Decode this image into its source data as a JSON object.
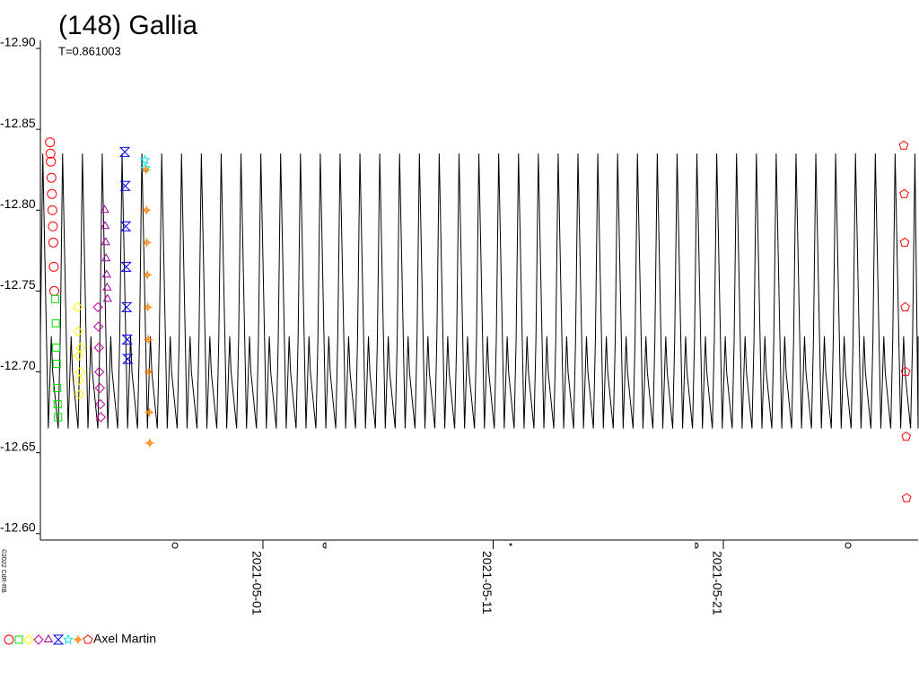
{
  "chart_data": {
    "type": "lightcurve",
    "title": "(148) Gallia",
    "subtitle": "T=0.861003",
    "period": 0.861003,
    "credit": "©2022 CdR-RB",
    "observer": "Axel Martin",
    "y_inverted": true,
    "ylim": [
      -12.905,
      -12.596
    ],
    "yticks": [
      {
        "value": -12.9,
        "label": "-12.90"
      },
      {
        "value": -12.85,
        "label": "-12.85"
      },
      {
        "value": -12.8,
        "label": "-12.80"
      },
      {
        "value": -12.75,
        "label": "-12.75"
      },
      {
        "value": -12.7,
        "label": "-12.70"
      },
      {
        "value": -12.65,
        "label": "-12.65"
      },
      {
        "value": -12.6,
        "label": "-12.60"
      }
    ],
    "xlim": [
      "2021-04-21T08:00",
      "2021-05-29T11:00"
    ],
    "xticks": [
      "2021-05-01",
      "2021-05-11",
      "2021-05-21"
    ],
    "model": {
      "color": "#000000",
      "phase": [
        0,
        0.12,
        0.4,
        0.55,
        0.62,
        0.9,
        1
      ],
      "values": [
        -12.72,
        -12.835,
        -12.665,
        -12.722,
        -12.7,
        -12.665,
        -12.72
      ]
    },
    "series": [
      {
        "marker": "circle",
        "color": "#ff0000",
        "x": [
          "2021-04-21T18:00",
          "2021-04-21T18:30",
          "2021-04-21T19:00",
          "2021-04-21T19:30",
          "2021-04-21T20:00",
          "2021-04-21T20:30",
          "2021-04-21T21:00",
          "2021-04-21T21:30",
          "2021-04-21T22:00",
          "2021-04-21T22:30"
        ],
        "values": [
          -12.842,
          -12.835,
          -12.83,
          -12.82,
          -12.81,
          -12.8,
          -12.79,
          -12.78,
          -12.765,
          -12.75
        ]
      },
      {
        "marker": "square",
        "color": "#00e000",
        "x": [
          "2021-04-21T23:30",
          "2021-04-22T00:00",
          "2021-04-22T00:30",
          "2021-04-22T01:00",
          "2021-04-22T01:30",
          "2021-04-22T02:00",
          "2021-04-22T02:30"
        ],
        "values": [
          -12.745,
          -12.73,
          -12.715,
          -12.705,
          -12.69,
          -12.68,
          -12.672
        ]
      },
      {
        "marker": "diamond",
        "color": "#ffff00",
        "x": [
          "2021-04-22T23:00",
          "2021-04-22T23:30",
          "2021-04-23T00:00",
          "2021-04-23T00:30",
          "2021-04-23T01:00",
          "2021-04-23T01:30",
          "2021-04-23T02:00"
        ],
        "values": [
          -12.74,
          -12.725,
          -12.71,
          -12.695,
          -12.686,
          -12.7,
          -12.715
        ]
      },
      {
        "marker": "diamond",
        "color": "#c000a0",
        "x": [
          "2021-04-23T20:00",
          "2021-04-23T20:30",
          "2021-04-23T21:00",
          "2021-04-23T21:30",
          "2021-04-23T22:00",
          "2021-04-23T22:30",
          "2021-04-23T23:00"
        ],
        "values": [
          -12.74,
          -12.728,
          -12.715,
          -12.7,
          -12.69,
          -12.68,
          -12.672
        ]
      },
      {
        "marker": "triangle",
        "color": "#a000a0",
        "x": [
          "2021-04-24T03:00",
          "2021-04-24T03:30",
          "2021-04-24T04:00",
          "2021-04-24T04:30",
          "2021-04-24T05:00",
          "2021-04-24T05:30",
          "2021-04-24T06:00"
        ],
        "values": [
          -12.8,
          -12.79,
          -12.78,
          -12.77,
          -12.76,
          -12.752,
          -12.745
        ]
      },
      {
        "marker": "hourglass",
        "color": "#0000ff",
        "x": [
          "2021-04-25T00:00",
          "2021-04-25T00:30",
          "2021-04-25T01:00",
          "2021-04-25T01:30",
          "2021-04-25T02:00",
          "2021-04-25T02:30",
          "2021-04-25T03:00"
        ],
        "values": [
          -12.836,
          -12.815,
          -12.79,
          -12.765,
          -12.74,
          -12.72,
          -12.708
        ]
      },
      {
        "marker": "star",
        "color": "#00e0e0",
        "x": [
          "2021-04-25T21:00",
          "2021-04-25T21:30"
        ],
        "values": [
          -12.831,
          -12.826
        ]
      },
      {
        "marker": "cross",
        "color": "#ff8000",
        "x": [
          "2021-04-25T22:00",
          "2021-04-25T22:30",
          "2021-04-25T23:00",
          "2021-04-25T23:30",
          "2021-04-26T00:00",
          "2021-04-26T00:30",
          "2021-04-26T01:00",
          "2021-04-26T01:30",
          "2021-04-26T02:00"
        ],
        "values": [
          -12.825,
          -12.8,
          -12.78,
          -12.76,
          -12.74,
          -12.72,
          -12.7,
          -12.675,
          -12.656
        ]
      },
      {
        "marker": "pentagon",
        "color": "#ff0000",
        "x": [
          "2021-05-28T20:00",
          "2021-05-28T20:30",
          "2021-05-28T21:00",
          "2021-05-28T21:30",
          "2021-05-28T22:00",
          "2021-05-28T22:30",
          "2021-05-28T23:00"
        ],
        "values": [
          -12.84,
          -12.81,
          -12.78,
          -12.74,
          -12.7,
          -12.66,
          -12.622
        ]
      }
    ]
  }
}
